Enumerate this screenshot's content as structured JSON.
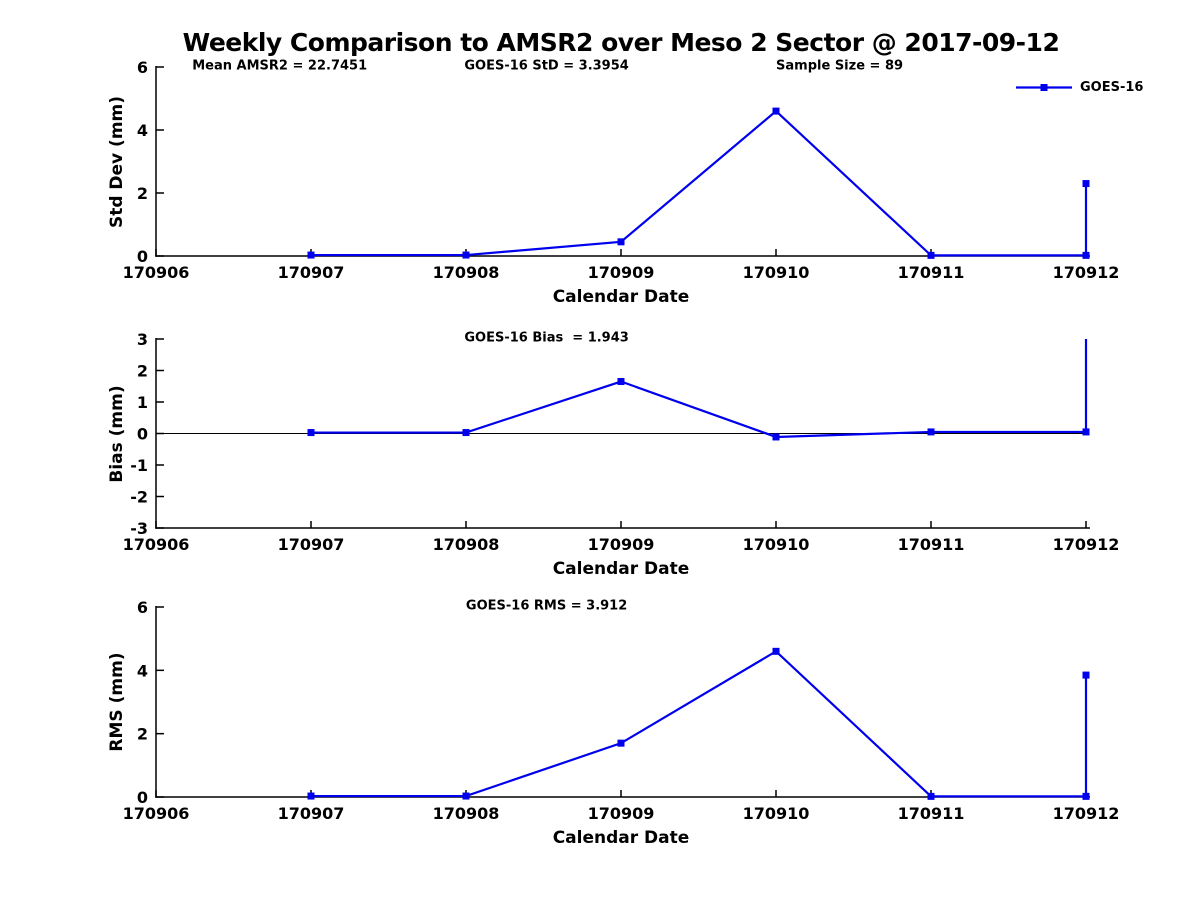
{
  "figure": {
    "title": "Weekly Comparison to AMSR2 over Meso 2 Sector @ 2017-09-12",
    "background_color": "#ffffff",
    "text_color": "#000000"
  },
  "legend": {
    "label": "GOES-16",
    "color": "#0000ee",
    "position": "top-right",
    "marker": "filled-square"
  },
  "chart_data": [
    {
      "type": "line",
      "ylabel": "Std Dev (mm)",
      "xlabel": "Calendar Date",
      "annotations": [
        {
          "text": "Mean AMSR2 = 22.7451",
          "fx": 0.133
        },
        {
          "text": "GOES-16 StD = 3.3954",
          "fx": 0.42
        },
        {
          "text": "Sample Size = 89",
          "fx": 0.735
        }
      ],
      "xlim": [
        170906,
        170912
      ],
      "ylim": [
        0,
        6
      ],
      "x_ticks": [
        170906,
        170907,
        170908,
        170909,
        170910,
        170911,
        170912
      ],
      "y_ticks": [
        0,
        2,
        4,
        6
      ],
      "grid": false,
      "zero_line": false,
      "series": [
        {
          "name": "GOES-16",
          "color": "#0000ee",
          "points": [
            {
              "x": 170907,
              "y": 0.03,
              "marker": true
            },
            {
              "x": 170908,
              "y": 0.03,
              "marker": true
            },
            {
              "x": 170909,
              "y": 0.45,
              "marker": true
            },
            {
              "x": 170910,
              "y": 4.6,
              "marker": true
            },
            {
              "x": 170911,
              "y": 0.02,
              "marker": true
            },
            {
              "x": 170912,
              "y": 0.02,
              "marker": true
            },
            {
              "x": 170912,
              "y": 2.3,
              "marker": true
            }
          ]
        }
      ]
    },
    {
      "type": "line",
      "ylabel": "Bias (mm)",
      "xlabel": "Calendar Date",
      "annotations": [
        {
          "text": "GOES-16 Bias  = 1.943",
          "fx": 0.42
        }
      ],
      "xlim": [
        170906,
        170912
      ],
      "ylim": [
        -3,
        3
      ],
      "x_ticks": [
        170906,
        170907,
        170908,
        170909,
        170910,
        170911,
        170912
      ],
      "y_ticks": [
        -3,
        -2,
        -1,
        0,
        1,
        2,
        3
      ],
      "grid": false,
      "zero_line": true,
      "series": [
        {
          "name": "GOES-16",
          "color": "#0000ee",
          "points": [
            {
              "x": 170907,
              "y": 0.03,
              "marker": true
            },
            {
              "x": 170908,
              "y": 0.03,
              "marker": true
            },
            {
              "x": 170909,
              "y": 1.65,
              "marker": true
            },
            {
              "x": 170910,
              "y": -0.11,
              "marker": true
            },
            {
              "x": 170911,
              "y": 0.05,
              "marker": true
            },
            {
              "x": 170912,
              "y": 0.05,
              "marker": true
            },
            {
              "x": 170912,
              "y": 3.0,
              "marker": false,
              "clipped": true
            }
          ]
        }
      ]
    },
    {
      "type": "line",
      "ylabel": "RMS (mm)",
      "xlabel": "Calendar Date",
      "annotations": [
        {
          "text": "GOES-16 RMS = 3.912",
          "fx": 0.42
        }
      ],
      "xlim": [
        170906,
        170912
      ],
      "ylim": [
        0,
        6
      ],
      "x_ticks": [
        170906,
        170907,
        170908,
        170909,
        170910,
        170911,
        170912
      ],
      "y_ticks": [
        0,
        2,
        4,
        6
      ],
      "grid": false,
      "zero_line": false,
      "series": [
        {
          "name": "GOES-16",
          "color": "#0000ee",
          "points": [
            {
              "x": 170907,
              "y": 0.03,
              "marker": true
            },
            {
              "x": 170908,
              "y": 0.03,
              "marker": true
            },
            {
              "x": 170909,
              "y": 1.7,
              "marker": true
            },
            {
              "x": 170910,
              "y": 4.6,
              "marker": true
            },
            {
              "x": 170911,
              "y": 0.02,
              "marker": true
            },
            {
              "x": 170912,
              "y": 0.02,
              "marker": true
            },
            {
              "x": 170912,
              "y": 3.85,
              "marker": true
            }
          ]
        }
      ]
    }
  ]
}
